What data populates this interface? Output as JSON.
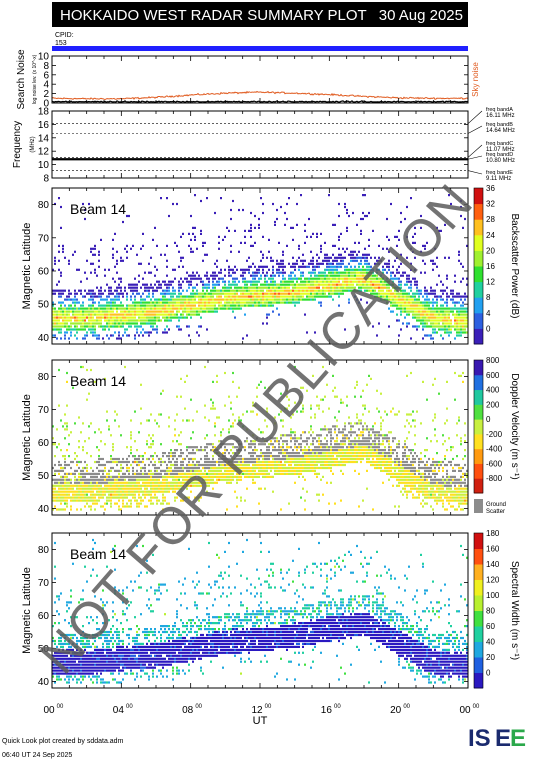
{
  "header": {
    "title": "HOKKAIDO WEST RADAR SUMMARY PLOT",
    "date": "30 Aug 2025",
    "cpid_label": "CPID:",
    "cpid_value": "153"
  },
  "colors": {
    "cpid_bar": "#2020ff",
    "sky_noise": "#e05a1e",
    "ground_scatter": "#8c8c8c",
    "title_bar_bg": "#000000",
    "title_text": "#ffffff",
    "watermark": "#5a5a5a"
  },
  "watermark": "NOT FOR PUBLICATION",
  "footer": {
    "line1": "Quick Look plot created by sddata.adm",
    "line2": "06:40 UT 24 Sep 2025",
    "logo_text": "ISEE"
  },
  "chart_data": [
    {
      "type": "line",
      "ylabel": "Search Noise",
      "ylabel_sub": "log noise lev. (x 10^-x)",
      "series_label": "Sky noise",
      "ylim": [
        0,
        10
      ],
      "yticks": [
        0,
        2,
        4,
        6,
        8,
        10
      ],
      "x": [
        0,
        2,
        4,
        6,
        8,
        10,
        12,
        14,
        16,
        18,
        20,
        22,
        24
      ],
      "series": [
        {
          "name": "Sky noise",
          "values": [
            1.0,
            0.9,
            0.9,
            1.2,
            1.7,
            2.1,
            2.3,
            2.1,
            1.8,
            1.4,
            1.1,
            1.0,
            1.0
          ]
        },
        {
          "values": [
            0.2,
            0.2,
            0.2,
            0.2,
            0.2,
            0.2,
            0.2,
            0.2,
            0.2,
            0.2,
            0.2,
            0.2,
            0.2
          ]
        }
      ]
    },
    {
      "type": "line",
      "ylabel": "Frequency",
      "ylabel_sub": "(MHz)",
      "ylim": [
        8,
        18
      ],
      "yticks": [
        8,
        10,
        12,
        14,
        16,
        18
      ],
      "bands": [
        {
          "label": "freq bandA",
          "value_label": "16.11 MHz",
          "value": 16.11
        },
        {
          "label": "freq bandB",
          "value_label": "14.64 MHz",
          "value": 14.64
        },
        {
          "label": "freq bandC",
          "value_label": "11.07 MHz",
          "value": 11.07
        },
        {
          "label": "freq bandD",
          "value_label": "10.80 MHz",
          "value": 10.8
        },
        {
          "label": "freq bandE",
          "value_label": "9.11 MHz",
          "value": 9.11
        }
      ],
      "operating_frequency": 10.8
    },
    {
      "type": "heatmap",
      "beam_label": "Beam 14",
      "ylabel": "Magnetic Latitude",
      "ylim": [
        38,
        85
      ],
      "yticks": [
        40,
        50,
        60,
        70,
        80
      ],
      "colorbar_label": "Backscatter Power (dB)",
      "colorbar_ticks": [
        "0",
        "4",
        "8",
        "12",
        "16",
        "20",
        "24",
        "28",
        "32",
        "36"
      ],
      "colorbar_range": [
        0,
        36
      ],
      "band_center_lat": [
        46,
        46,
        47,
        48,
        50,
        52,
        53,
        54,
        56,
        58,
        52,
        46,
        45
      ]
    },
    {
      "type": "heatmap",
      "beam_label": "Beam 14",
      "ylabel": "Magnetic Latitude",
      "ylim": [
        38,
        85
      ],
      "yticks": [
        40,
        50,
        60,
        70,
        80
      ],
      "colorbar_label": "Doppler Velocity (m s⁻¹)",
      "colorbar_ticks": [
        "-800",
        "-600",
        "-400",
        "-200",
        "0",
        "200",
        "400",
        "600",
        "800"
      ],
      "colorbar_range": [
        -800,
        800
      ],
      "ground_scatter_label": "Ground\nScatter",
      "band_center_lat": [
        46,
        46,
        47,
        48,
        50,
        52,
        53,
        54,
        56,
        58,
        52,
        46,
        45
      ]
    },
    {
      "type": "heatmap",
      "beam_label": "Beam 14",
      "ylabel": "Magnetic Latitude",
      "ylim": [
        38,
        85
      ],
      "yticks": [
        40,
        50,
        60,
        70,
        80
      ],
      "colorbar_label": "Spectral Width (m s⁻¹)",
      "colorbar_ticks": [
        "0",
        "20",
        "40",
        "60",
        "80",
        "100",
        "120",
        "140",
        "160",
        "180"
      ],
      "colorbar_range": [
        0,
        180
      ],
      "band_center_lat": [
        46,
        46,
        47,
        48,
        50,
        52,
        53,
        54,
        56,
        58,
        52,
        46,
        45
      ]
    }
  ],
  "xaxis": {
    "label": "UT",
    "xlim": [
      0,
      24
    ],
    "ticks": [
      {
        "hour": 0,
        "label": "00",
        "sup": "00"
      },
      {
        "hour": 4,
        "label": "04",
        "sup": "00"
      },
      {
        "hour": 8,
        "label": "08",
        "sup": "00"
      },
      {
        "hour": 12,
        "label": "12",
        "sup": "00"
      },
      {
        "hour": 16,
        "label": "16",
        "sup": "00"
      },
      {
        "hour": 20,
        "label": "20",
        "sup": "00"
      },
      {
        "hour": 24,
        "label": "00",
        "sup": "00"
      }
    ]
  }
}
